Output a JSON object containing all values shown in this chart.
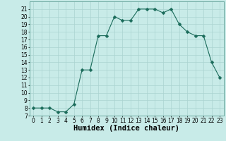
{
  "title": "",
  "xlabel": "Humidex (Indice chaleur)",
  "x": [
    0,
    1,
    2,
    3,
    4,
    5,
    6,
    7,
    8,
    9,
    10,
    11,
    12,
    13,
    14,
    15,
    16,
    17,
    18,
    19,
    20,
    21,
    22,
    23
  ],
  "y": [
    8,
    8,
    8,
    7.5,
    7.5,
    8.5,
    13,
    13,
    17.5,
    17.5,
    20,
    19.5,
    19.5,
    21,
    21,
    21,
    20.5,
    21,
    19,
    18,
    17.5,
    17.5,
    14,
    12
  ],
  "line_color": "#1a6b5a",
  "marker": "D",
  "marker_size": 2.5,
  "bg_color": "#c8ebe8",
  "grid_color": "#aad4d0",
  "ylim": [
    7,
    22
  ],
  "xlim": [
    -0.5,
    23.5
  ],
  "yticks": [
    7,
    8,
    9,
    10,
    11,
    12,
    13,
    14,
    15,
    16,
    17,
    18,
    19,
    20,
    21
  ],
  "xticks": [
    0,
    1,
    2,
    3,
    4,
    5,
    6,
    7,
    8,
    9,
    10,
    11,
    12,
    13,
    14,
    15,
    16,
    17,
    18,
    19,
    20,
    21,
    22,
    23
  ],
  "tick_fontsize": 5.5,
  "xlabel_fontsize": 7.5
}
